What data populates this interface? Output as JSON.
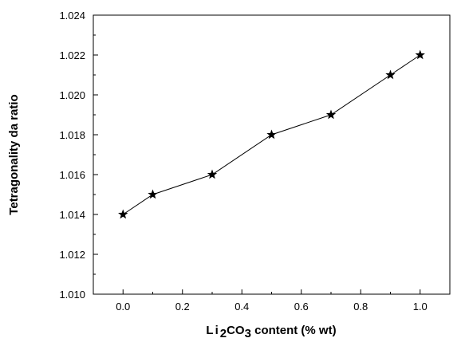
{
  "chart_data": {
    "type": "line",
    "title": "",
    "xlabel": {
      "base": "Li",
      "sub1": "2",
      "mid": "CO",
      "sub2": "3",
      "rest": " content (% wt)"
    },
    "ylabel": "Tetragonality da ratio",
    "xlim": [
      -0.1,
      1.1
    ],
    "ylim": [
      1.01,
      1.024
    ],
    "x_ticks": [
      0.0,
      0.2,
      0.4,
      0.6,
      0.8,
      1.0
    ],
    "x_tick_labels": [
      "0.0",
      "0.2",
      "0.4",
      "0.6",
      "0.8",
      "1.0"
    ],
    "y_ticks": [
      1.01,
      1.012,
      1.014,
      1.016,
      1.018,
      1.02,
      1.022,
      1.024
    ],
    "y_tick_labels": [
      "1.010",
      "1.012",
      "1.014",
      "1.016",
      "1.018",
      "1.020",
      "1.022",
      "1.024"
    ],
    "grid": false,
    "marker": "star",
    "series": [
      {
        "x": [
          0.0,
          0.1,
          0.3,
          0.5,
          0.7,
          0.9,
          1.0
        ],
        "y": [
          1.014,
          1.015,
          1.016,
          1.018,
          1.019,
          1.021,
          1.022
        ]
      }
    ],
    "colors": {
      "line": "#000000",
      "marker": "#000000",
      "axis": "#000000"
    }
  }
}
